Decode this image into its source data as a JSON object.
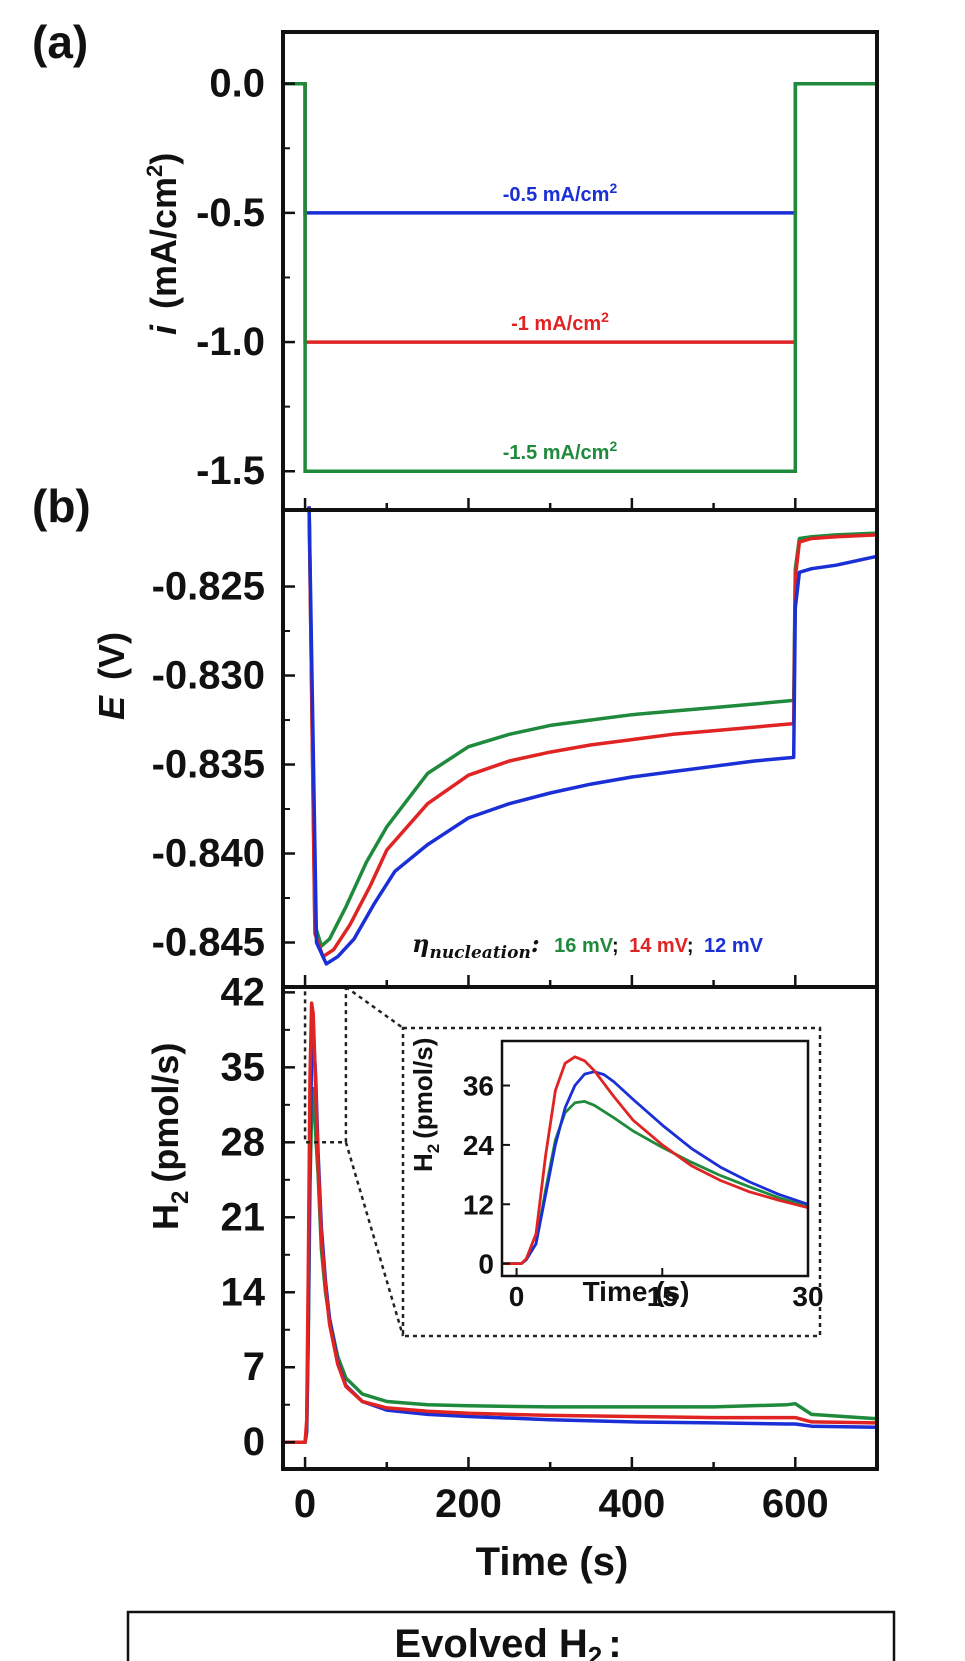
{
  "chart_data": [
    {
      "id": "a",
      "type": "line",
      "panel_label": "(a)",
      "ylabel_italic": "i",
      "ylabel_rest": "(mA/cm",
      "ylabel_sup": "2",
      "ylabel_close": ")",
      "ylim": [
        -1.65,
        0.2
      ],
      "yticks": [
        0.0,
        -0.5,
        -1.0,
        -1.5
      ],
      "ytick_labels": [
        "0.0",
        "-0.5",
        "-1.0",
        "-1.5"
      ],
      "series": [
        {
          "name": "-0.5 mA/cm2",
          "label": "-0.5 mA/cm",
          "sup": "2",
          "color": "#1a2fd6",
          "value": -0.5,
          "on": 0,
          "off": 600
        },
        {
          "name": "-1 mA/cm2",
          "label": "-1 mA/cm",
          "sup": "2",
          "color": "#e02323",
          "value": -1.0,
          "on": 0,
          "off": 600
        },
        {
          "name": "-1.5 mA/cm2",
          "label": "-1.5 mA/cm",
          "sup": "2",
          "color": "#1f8a3b",
          "value": -1.5,
          "on": 0,
          "off": 600
        }
      ]
    },
    {
      "id": "b",
      "type": "line",
      "panel_label": "(b)",
      "ylabel_italic": "E",
      "ylabel_rest": "(V)",
      "ylim": [
        -0.8475,
        -0.8207
      ],
      "yticks": [
        -0.825,
        -0.83,
        -0.835,
        -0.84,
        -0.845
      ],
      "ytick_labels": [
        "-0.825",
        "-0.830",
        "-0.835",
        "-0.840",
        "-0.845"
      ],
      "annotation_eta": "η",
      "annotation_sub": "nucleation",
      "annotation_colon": ":",
      "annotation_values": [
        {
          "text": "16 mV",
          "color": "#1f8a3b"
        },
        {
          "text": "14 mV",
          "color": "#e02323"
        },
        {
          "text": "12 mV",
          "color": "#1a2fd6"
        }
      ],
      "annotation_sep": ";",
      "series": [
        {
          "name": "green",
          "color": "#1f8a3b",
          "x": [
            5,
            12,
            20,
            30,
            50,
            75,
            100,
            150,
            200,
            250,
            300,
            350,
            400,
            450,
            500,
            550,
            598,
            600,
            605,
            620,
            650,
            700
          ],
          "y": [
            -0.8205,
            -0.844,
            -0.8452,
            -0.8448,
            -0.843,
            -0.8405,
            -0.8385,
            -0.8355,
            -0.834,
            -0.8333,
            -0.8328,
            -0.8325,
            -0.8322,
            -0.832,
            -0.8318,
            -0.8316,
            -0.8314,
            -0.824,
            -0.8223,
            -0.8222,
            -0.8221,
            -0.822
          ]
        },
        {
          "name": "red",
          "color": "#e02323",
          "x": [
            5,
            12,
            22,
            35,
            55,
            80,
            100,
            150,
            200,
            250,
            300,
            350,
            400,
            450,
            500,
            550,
            598,
            600,
            605,
            620,
            650,
            700
          ],
          "y": [
            -0.8205,
            -0.8445,
            -0.8458,
            -0.8454,
            -0.844,
            -0.8418,
            -0.8398,
            -0.8372,
            -0.8356,
            -0.8348,
            -0.8343,
            -0.8339,
            -0.8336,
            -0.8333,
            -0.8331,
            -0.8329,
            -0.8327,
            -0.8245,
            -0.8225,
            -0.8223,
            -0.8222,
            -0.8221
          ]
        },
        {
          "name": "blue",
          "color": "#1a2fd6",
          "x": [
            5,
            14,
            26,
            40,
            60,
            85,
            110,
            150,
            160,
            200,
            250,
            300,
            350,
            400,
            450,
            500,
            550,
            598,
            600,
            605,
            620,
            650,
            700
          ],
          "y": [
            -0.8205,
            -0.845,
            -0.8462,
            -0.8458,
            -0.8448,
            -0.8428,
            -0.841,
            -0.8395,
            -0.8392,
            -0.838,
            -0.8372,
            -0.8366,
            -0.8361,
            -0.8357,
            -0.8354,
            -0.8351,
            -0.8348,
            -0.8346,
            -0.8262,
            -0.8242,
            -0.824,
            -0.8238,
            -0.8233
          ]
        }
      ]
    },
    {
      "id": "c",
      "type": "line",
      "ylabel": "H",
      "ylabel_sub": "2",
      "ylabel_rest": "(pmol/s)",
      "xlabel": "Time (s)",
      "xlim": [
        -27,
        700
      ],
      "ylim": [
        -2.5,
        42.5
      ],
      "xticks": [
        0,
        200,
        400,
        600
      ],
      "xtick_labels": [
        "0",
        "200",
        "400",
        "600"
      ],
      "yticks": [
        0,
        7,
        14,
        21,
        28,
        35,
        42
      ],
      "ytick_labels": [
        "0",
        "7",
        "14",
        "21",
        "28",
        "35",
        "42"
      ],
      "zoom_box": {
        "x0": 0,
        "x1": 50,
        "y0": 28,
        "y1": 42.5
      },
      "series": [
        {
          "name": "green",
          "color": "#1f8a3b",
          "x": [
            -27,
            0,
            2,
            4,
            6,
            8,
            10,
            12,
            16,
            20,
            25,
            30,
            40,
            50,
            70,
            100,
            150,
            200,
            300,
            400,
            500,
            590,
            600,
            620,
            700
          ],
          "y": [
            0,
            0,
            1,
            10,
            24,
            31,
            33,
            30,
            25,
            18,
            14,
            11.5,
            8,
            6,
            4.5,
            3.8,
            3.5,
            3.4,
            3.3,
            3.3,
            3.3,
            3.5,
            3.6,
            2.6,
            2.2
          ]
        },
        {
          "name": "blue",
          "color": "#1a2fd6",
          "x": [
            -27,
            0,
            2,
            4,
            6,
            8,
            10,
            13,
            16,
            20,
            25,
            30,
            40,
            50,
            70,
            100,
            150,
            200,
            300,
            400,
            500,
            590,
            600,
            620,
            700
          ],
          "y": [
            0,
            0,
            1,
            11,
            27,
            36,
            38.5,
            34,
            27,
            20,
            15,
            11.5,
            7.5,
            5.3,
            3.8,
            3.0,
            2.6,
            2.4,
            2.1,
            1.9,
            1.8,
            1.7,
            1.7,
            1.5,
            1.4
          ]
        },
        {
          "name": "red",
          "color": "#e02323",
          "x": [
            -27,
            0,
            2,
            4,
            6,
            8,
            10,
            13,
            16,
            20,
            25,
            30,
            40,
            50,
            70,
            100,
            150,
            200,
            300,
            400,
            500,
            590,
            600,
            620,
            700
          ],
          "y": [
            0,
            0,
            2,
            16,
            34,
            41,
            40,
            33,
            26,
            19,
            14.5,
            11,
            7.3,
            5.2,
            3.8,
            3.2,
            2.9,
            2.7,
            2.5,
            2.4,
            2.3,
            2.3,
            2.3,
            1.9,
            1.8
          ]
        }
      ]
    },
    {
      "id": "inset",
      "type": "line",
      "ylabel": "H",
      "ylabel_sub": "2",
      "ylabel_rest": "(pmol/s)",
      "xlabel": "Time (s)",
      "xlim": [
        -1.5,
        30
      ],
      "ylim": [
        -2.5,
        45
      ],
      "xticks": [
        0,
        15,
        30
      ],
      "xtick_labels": [
        "0",
        "15",
        "30"
      ],
      "yticks": [
        0,
        12,
        24,
        36
      ],
      "ytick_labels": [
        "0",
        "12",
        "24",
        "36"
      ],
      "series": [
        {
          "name": "green",
          "color": "#1f8a3b",
          "x": [
            -1.5,
            0.5,
            1,
            2,
            3,
            4,
            5,
            6,
            7,
            8,
            10,
            12,
            15,
            18,
            21,
            24,
            27,
            30
          ],
          "y": [
            0,
            0,
            0.8,
            4,
            15,
            25,
            30.5,
            32.5,
            32.8,
            32,
            29.5,
            26.8,
            23.5,
            20.5,
            17.8,
            15.5,
            13.3,
            11.5
          ]
        },
        {
          "name": "blue",
          "color": "#1a2fd6",
          "x": [
            -1.5,
            0.5,
            1,
            2,
            3,
            4,
            5,
            6,
            7,
            8,
            9,
            10,
            12,
            15,
            18,
            21,
            24,
            27,
            30
          ],
          "y": [
            0,
            0,
            0.8,
            4,
            14,
            24,
            31.5,
            36,
            38.3,
            38.8,
            38.2,
            36.8,
            33.2,
            28,
            23.3,
            19.5,
            16.5,
            14,
            12
          ]
        },
        {
          "name": "red",
          "color": "#e02323",
          "x": [
            -1.5,
            0.5,
            1,
            2,
            3,
            4,
            5,
            6,
            7,
            8,
            10,
            12,
            15,
            18,
            21,
            24,
            27,
            30
          ],
          "y": [
            0,
            0,
            1,
            6,
            22,
            35,
            40.5,
            41.8,
            41,
            39,
            33.8,
            29,
            24,
            19.8,
            16.8,
            14.5,
            12.8,
            11.3
          ]
        }
      ]
    }
  ],
  "footer": {
    "label": "Evolved H",
    "sub": "2",
    "suffix": ":"
  }
}
